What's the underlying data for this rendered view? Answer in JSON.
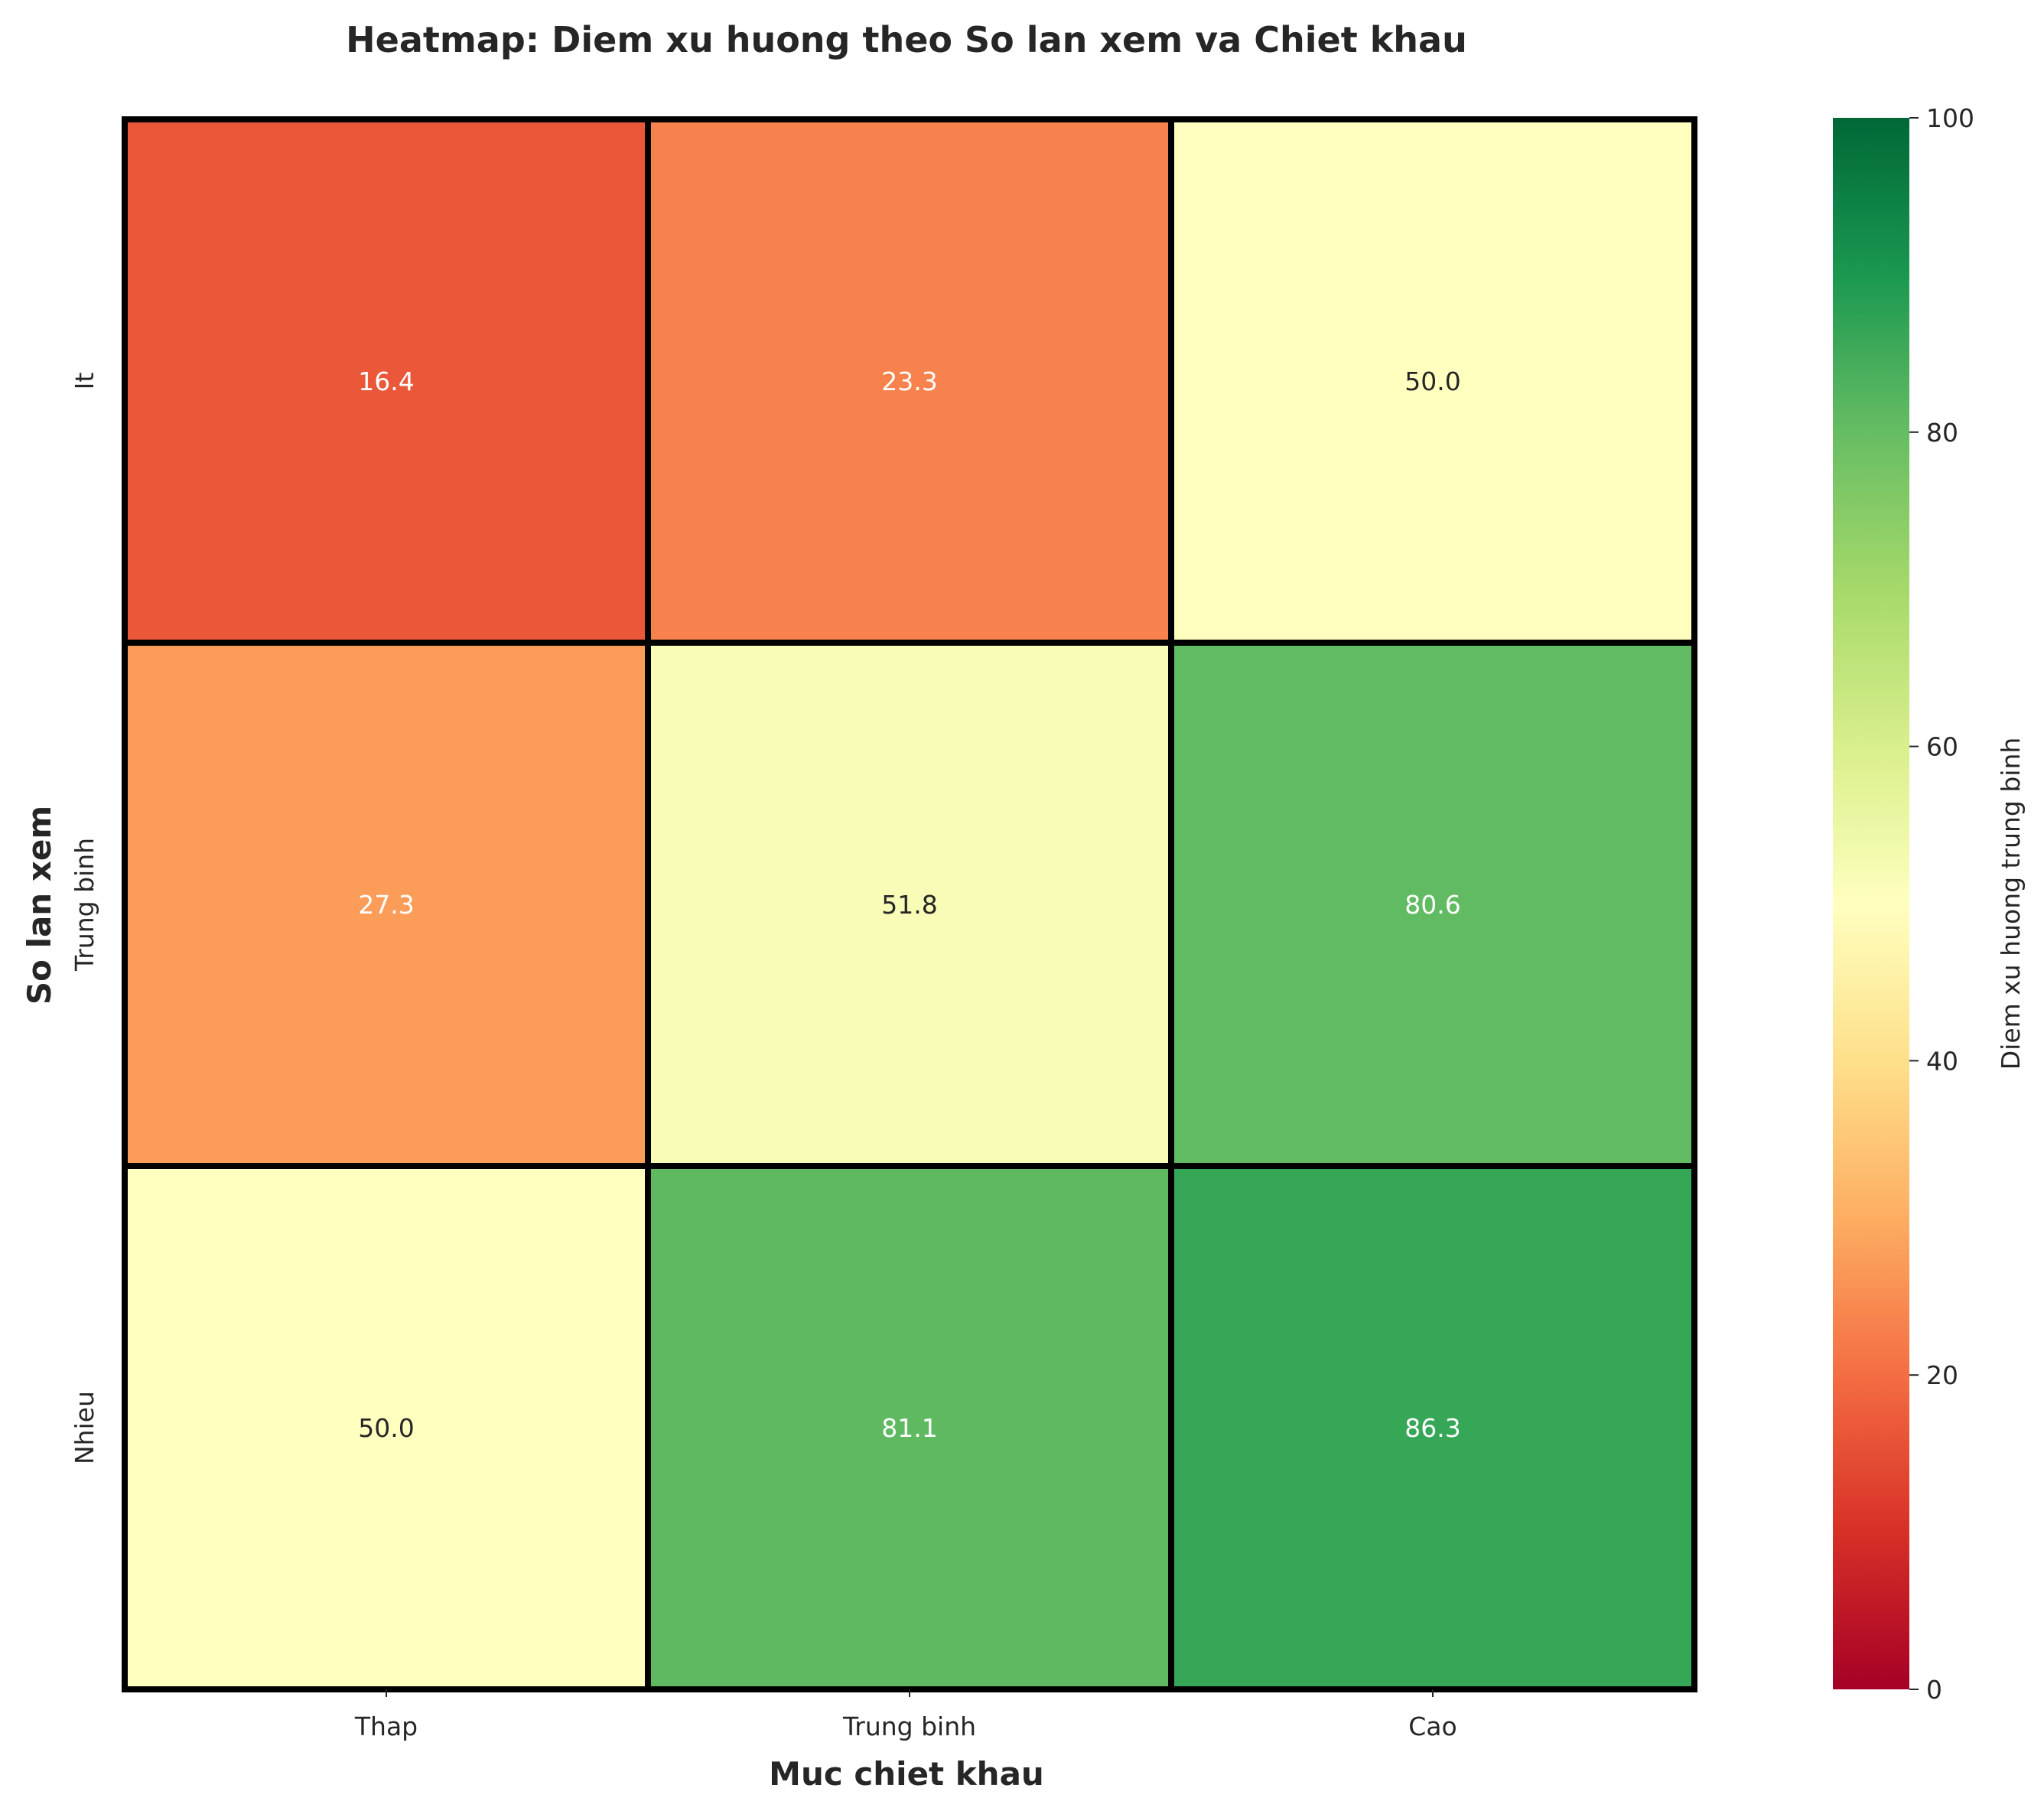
{
  "chart_data": {
    "type": "heatmap",
    "title": "Heatmap: Diem xu huong theo So lan xem va Chiet khau",
    "xlabel": "Muc chiet khau",
    "ylabel": "So lan xem",
    "x_categories": [
      "Thap",
      "Trung binh",
      "Cao"
    ],
    "y_categories": [
      "It",
      "Trung binh",
      "Nhieu"
    ],
    "values": [
      [
        16.4,
        23.3,
        50.0
      ],
      [
        27.3,
        51.8,
        80.6
      ],
      [
        50.0,
        81.1,
        86.3
      ]
    ],
    "colorbar": {
      "label": "Diem xu huong trung binh",
      "range": [
        0,
        100
      ],
      "ticks": [
        0,
        20,
        40,
        60,
        80,
        100
      ],
      "colormap": "RdYlGn"
    }
  }
}
